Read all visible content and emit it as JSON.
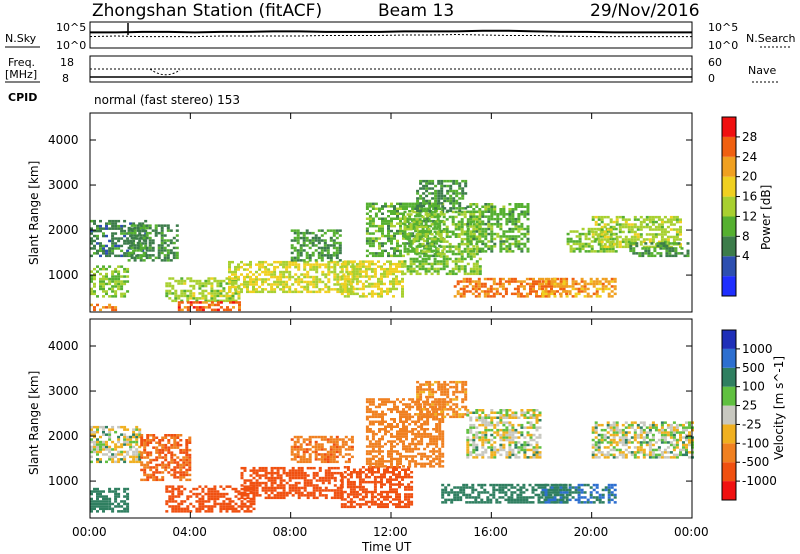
{
  "header": {
    "station": "Zhongshan Station (fitACF)",
    "beam": "Beam 13",
    "date": "29/Nov/2016"
  },
  "sky_panel": {
    "left_label": "N.Sky",
    "left_ticks": [
      "10^5",
      "10^0"
    ],
    "right_label": "N.Search",
    "right_ticks": [
      "10^5",
      "10^0"
    ],
    "values_sky_log10": [
      3.0,
      3.0,
      3.1,
      3.1,
      3.0,
      3.1,
      3.1,
      3.2,
      3.2,
      3.1,
      3.1,
      3.1,
      3.2,
      3.2,
      3.2,
      3.3,
      3.3,
      3.2,
      3.1,
      3.1,
      3.0,
      3.0,
      3.0,
      3.0
    ],
    "values_search_log10": [
      2.2,
      2.3,
      2.2,
      2.2,
      2.2,
      2.3,
      2.3,
      2.3,
      2.3,
      2.4,
      2.4,
      2.4,
      2.5,
      2.5,
      2.6,
      2.5,
      2.4,
      2.4,
      2.3,
      2.2,
      2.2,
      2.2,
      2.2,
      2.2
    ]
  },
  "freq_panel": {
    "left_label_1": "Freq.",
    "left_label_2": "[MHz]",
    "left_ticks": [
      "18",
      "8"
    ],
    "right_label": "Nave",
    "right_ticks": [
      "60",
      "0"
    ],
    "freq_mhz": 10.0,
    "nave": 40
  },
  "cpid": {
    "label": "CPID",
    "value": "normal (fast stereo) 153"
  },
  "power_panel": {
    "ylabel": "Slant Range [km]",
    "yticks": [
      "4000",
      "3000",
      "2000",
      "1000"
    ],
    "colorbar_label": "Power [dB]",
    "colorbar_ticks": [
      "28",
      "24",
      "20",
      "16",
      "12",
      "8",
      "4"
    ],
    "colors": [
      "#1f2fff",
      "#2d4fb0",
      "#3c7c4a",
      "#55b030",
      "#a8d030",
      "#f0d020",
      "#f0a020",
      "#f06010",
      "#f01010"
    ]
  },
  "velocity_panel": {
    "ylabel": "Slant Range [km]",
    "yticks": [
      "4000",
      "3000",
      "2000",
      "1000"
    ],
    "colorbar_label": "Velocity [m s^-1]",
    "colorbar_ticks": [
      "1000",
      "500",
      "100",
      "25",
      "-25",
      "-100",
      "-500",
      "-1000"
    ],
    "colors": [
      "#1f2fb8",
      "#2d6fd0",
      "#2f7f60",
      "#60c040",
      "#c8c8c0",
      "#f0b020",
      "#f08020",
      "#f05010",
      "#f01010"
    ]
  },
  "x_axis": {
    "ticks": [
      "00:00",
      "04:00",
      "08:00",
      "12:00",
      "16:00",
      "20:00",
      "00:00"
    ],
    "label": "Time UT"
  },
  "chart_data": {
    "type": "heatmap",
    "title": "Zhongshan Station (fitACF)",
    "x_range_hours": [
      0,
      24
    ],
    "y_range_km": [
      180,
      4600
    ],
    "xlabel": "Time UT",
    "ylabel": "Slant Range [km]",
    "power_patches": [
      {
        "t": [
          0,
          2.2
        ],
        "r": [
          1400,
          2200
        ],
        "db": 8
      },
      {
        "t": [
          0,
          1.0
        ],
        "r": [
          200,
          350
        ],
        "db": 26
      },
      {
        "t": [
          0,
          1.5
        ],
        "r": [
          500,
          1200
        ],
        "db": 14
      },
      {
        "t": [
          1.5,
          3.5
        ],
        "r": [
          1300,
          2100
        ],
        "db": 9
      },
      {
        "t": [
          3,
          6
        ],
        "r": [
          400,
          900
        ],
        "db": 16
      },
      {
        "t": [
          3.5,
          6
        ],
        "r": [
          200,
          400
        ],
        "db": 28
      },
      {
        "t": [
          5.5,
          10.5
        ],
        "r": [
          600,
          1300
        ],
        "db": 18
      },
      {
        "t": [
          8,
          10
        ],
        "r": [
          1300,
          2000
        ],
        "db": 10
      },
      {
        "t": [
          10,
          12.5
        ],
        "r": [
          500,
          1300
        ],
        "db": 18
      },
      {
        "t": [
          11,
          14
        ],
        "r": [
          1400,
          2600
        ],
        "db": 12
      },
      {
        "t": [
          12.5,
          15.5
        ],
        "r": [
          1000,
          2400
        ],
        "db": 14
      },
      {
        "t": [
          13,
          15
        ],
        "r": [
          2400,
          3100
        ],
        "db": 10
      },
      {
        "t": [
          14.5,
          19
        ],
        "r": [
          500,
          900
        ],
        "db": 26
      },
      {
        "t": [
          15,
          17.5
        ],
        "r": [
          1500,
          2600
        ],
        "db": 12
      },
      {
        "t": [
          18,
          21
        ],
        "r": [
          500,
          900
        ],
        "db": 24
      },
      {
        "t": [
          19,
          21
        ],
        "r": [
          1500,
          2000
        ],
        "db": 14
      },
      {
        "t": [
          20,
          23.5
        ],
        "r": [
          1600,
          2300
        ],
        "db": 16
      },
      {
        "t": [
          21.5,
          23.8
        ],
        "r": [
          1400,
          1700
        ],
        "db": 10
      }
    ],
    "velocity_patches": [
      {
        "t": [
          0,
          2
        ],
        "r": [
          1400,
          2200
        ],
        "v": 0
      },
      {
        "t": [
          0,
          1.5
        ],
        "r": [
          300,
          800
        ],
        "v": 200
      },
      {
        "t": [
          2,
          4
        ],
        "r": [
          1000,
          2000
        ],
        "v": -300
      },
      {
        "t": [
          3,
          6.5
        ],
        "r": [
          300,
          900
        ],
        "v": -400
      },
      {
        "t": [
          6,
          10
        ],
        "r": [
          600,
          1300
        ],
        "v": -500
      },
      {
        "t": [
          8,
          10.5
        ],
        "r": [
          1400,
          2000
        ],
        "v": -250
      },
      {
        "t": [
          10,
          12.8
        ],
        "r": [
          400,
          1300
        ],
        "v": -600
      },
      {
        "t": [
          11,
          14
        ],
        "r": [
          1300,
          2800
        ],
        "v": -200
      },
      {
        "t": [
          13,
          15
        ],
        "r": [
          2400,
          3200
        ],
        "v": -150
      },
      {
        "t": [
          14,
          19
        ],
        "r": [
          500,
          900
        ],
        "v": 150
      },
      {
        "t": [
          15,
          18
        ],
        "r": [
          1500,
          2600
        ],
        "v": 0
      },
      {
        "t": [
          18,
          21
        ],
        "r": [
          500,
          900
        ],
        "v": 300
      },
      {
        "t": [
          20,
          24
        ],
        "r": [
          1500,
          2300
        ],
        "v": 0
      }
    ]
  }
}
